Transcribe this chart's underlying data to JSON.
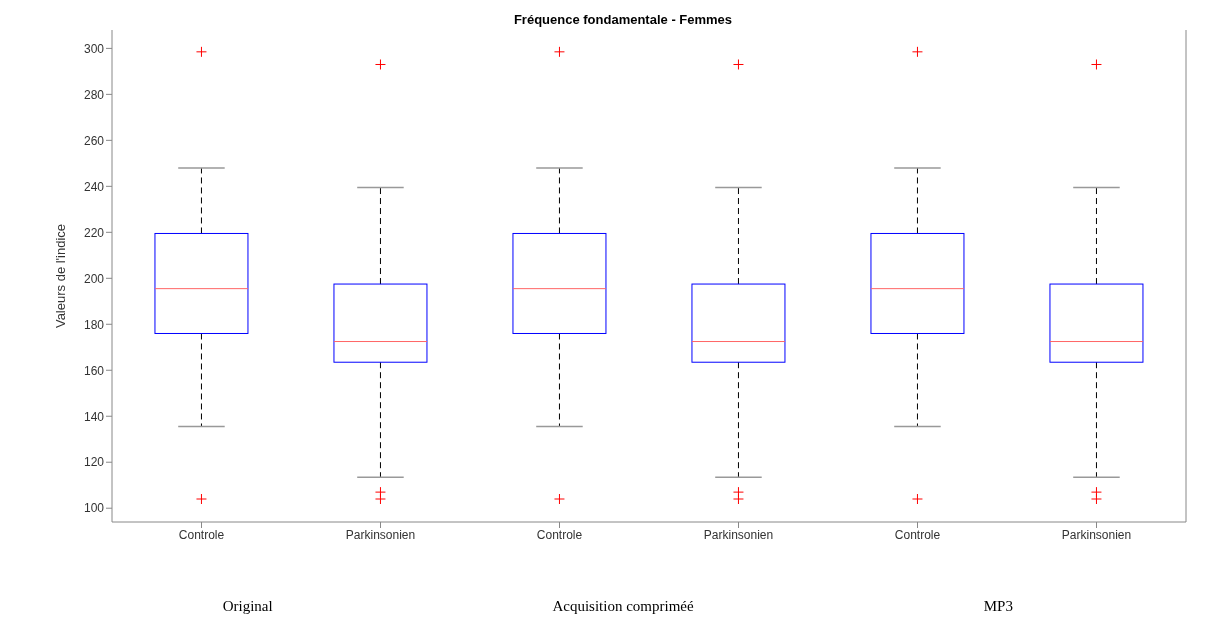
{
  "chart_data": {
    "type": "box",
    "title": "Fréquence fondamentale - Femmes",
    "ylabel": "Valeurs de l'indice",
    "categories": [
      "Controle",
      "Parkinsonien",
      "Controle",
      "Parkinsonien",
      "Controle",
      "Parkinsonien"
    ],
    "series": [
      {
        "color": "#0000ff",
        "boxes": [
          {
            "low": 135.5,
            "q1": 176,
            "median": 195.5,
            "q3": 219.5,
            "high": 248,
            "outliers": [
              298.5,
              104
            ]
          },
          {
            "low": 113.5,
            "q1": 163.5,
            "median": 172.5,
            "q3": 197.5,
            "high": 239.5,
            "outliers": [
              293,
              107,
              104
            ]
          },
          {
            "low": 135.5,
            "q1": 176,
            "median": 195.5,
            "q3": 219.5,
            "high": 248,
            "outliers": [
              298.5,
              104
            ]
          },
          {
            "low": 113.5,
            "q1": 163.5,
            "median": 172.5,
            "q3": 197.5,
            "high": 239.5,
            "outliers": [
              293,
              107,
              104
            ]
          },
          {
            "low": 135.5,
            "q1": 176,
            "median": 195.5,
            "q3": 219.5,
            "high": 248,
            "outliers": [
              298.5,
              104
            ]
          },
          {
            "low": 113.5,
            "q1": 163.5,
            "median": 172.5,
            "q3": 197.5,
            "high": 239.5,
            "outliers": [
              293,
              107,
              104
            ]
          }
        ]
      }
    ],
    "ylim": [
      94,
      308
    ],
    "yticks": [
      100,
      120,
      140,
      160,
      180,
      200,
      220,
      240,
      260,
      280,
      300
    ],
    "grid": false,
    "marker": "cross",
    "annotations": [
      "Original",
      "Acquisition compriméé",
      "MP3"
    ]
  }
}
